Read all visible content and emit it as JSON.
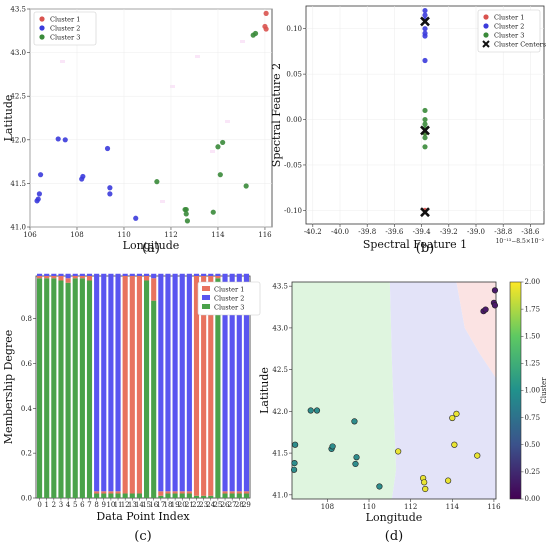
{
  "colors": {
    "cluster1": "#d9534f",
    "cluster2": "#3b3bdb",
    "cluster3": "#3a8a3a",
    "bar1": "#e8735f",
    "bar2": "#5a55f0",
    "bar3": "#4aa24a",
    "region1": "#fbe3e3",
    "region2": "#e3e3f8",
    "region3": "#dff5df"
  },
  "chart_data": [
    {
      "id": "a",
      "type": "scatter",
      "caption": "(a)",
      "xlabel": "Longitude",
      "ylabel": "Latitude",
      "xlim": [
        106,
        116.3
      ],
      "ylim": [
        41,
        43.5
      ],
      "xticks": [
        "106",
        "108",
        "110",
        "112",
        "114",
        "116"
      ],
      "yticks": [
        "41.0",
        "41.5",
        "42.0",
        "42.5",
        "43.0",
        "43.5"
      ],
      "legend": [
        "Cluster 1",
        "Cluster 2",
        "Cluster 3"
      ],
      "legend_position": "top-left",
      "series": [
        {
          "name": "Cluster 1",
          "points": [
            [
              116.05,
              43.45
            ],
            [
              116.0,
              43.3
            ],
            [
              116.05,
              43.27
            ]
          ]
        },
        {
          "name": "Cluster 2",
          "points": [
            [
              106.3,
              41.3
            ],
            [
              106.35,
              41.32
            ],
            [
              106.4,
              41.38
            ],
            [
              106.45,
              41.6
            ],
            [
              107.2,
              42.01
            ],
            [
              107.5,
              42.0
            ],
            [
              108.2,
              41.55
            ],
            [
              108.25,
              41.58
            ],
            [
              109.3,
              41.9
            ],
            [
              109.4,
              41.45
            ],
            [
              109.4,
              41.38
            ],
            [
              110.5,
              41.1
            ]
          ]
        },
        {
          "name": "Cluster 3",
          "points": [
            [
              111.4,
              41.52
            ],
            [
              112.6,
              41.2
            ],
            [
              112.65,
              41.15
            ],
            [
              112.7,
              41.07
            ],
            [
              112.65,
              41.2
            ],
            [
              113.8,
              41.17
            ],
            [
              114.0,
              41.92
            ],
            [
              114.2,
              41.97
            ],
            [
              114.1,
              41.6
            ],
            [
              115.2,
              41.47
            ],
            [
              115.5,
              43.2
            ],
            [
              115.6,
              43.22
            ]
          ]
        }
      ]
    },
    {
      "id": "b",
      "type": "scatter",
      "caption": "(b)",
      "xlabel": "Spectral Feature 1",
      "ylabel": "Spectral Feature 2",
      "x_offset_label": "10⁻¹³−8.5×10⁻²",
      "xlim": [
        -40.25,
        -38.5
      ],
      "ylim": [
        -0.115,
        0.125
      ],
      "xticks": [
        "-40.2",
        "-40.0",
        "-39.8",
        "-39.6",
        "-39.4",
        "-39.2",
        "-39.0",
        "-38.8",
        "-38.6"
      ],
      "xtick_values": [
        -40.2,
        -40.0,
        -39.8,
        -39.6,
        -39.4,
        -39.2,
        -39.0,
        -38.8,
        -38.6
      ],
      "yticks": [
        "0.10",
        "0.05",
        "0.00",
        "-0.05",
        "-0.10"
      ],
      "ytick_values": [
        0.1,
        0.05,
        0.0,
        -0.05,
        -0.1
      ],
      "legend": [
        "Cluster 1",
        "Cluster 2",
        "Cluster 3",
        "Cluster Centers"
      ],
      "legend_position": "top-right",
      "series": [
        {
          "name": "Cluster 1",
          "points": [
            [
              -39.375,
              -0.1
            ],
            [
              -39.375,
              -0.015
            ]
          ]
        },
        {
          "name": "Cluster 2",
          "points": [
            [
              -39.375,
              0.12
            ],
            [
              -39.375,
              0.115
            ],
            [
              -39.375,
              0.11
            ],
            [
              -39.375,
              0.1
            ],
            [
              -39.375,
              0.095
            ],
            [
              -39.375,
              0.092
            ],
            [
              -39.375,
              0.065
            ]
          ]
        },
        {
          "name": "Cluster 3",
          "points": [
            [
              -39.375,
              0.01
            ],
            [
              -39.375,
              0.0
            ],
            [
              -39.375,
              -0.005
            ],
            [
              -39.375,
              -0.01
            ],
            [
              -39.375,
              -0.015
            ],
            [
              -39.375,
              -0.02
            ],
            [
              -39.375,
              -0.03
            ]
          ]
        },
        {
          "name": "Cluster Centers",
          "points": [
            [
              -39.375,
              0.108
            ],
            [
              -39.375,
              -0.012
            ],
            [
              -39.375,
              -0.102
            ]
          ]
        }
      ]
    },
    {
      "id": "c",
      "type": "bar",
      "stacked": true,
      "caption": "(c)",
      "xlabel": "Data Point Index",
      "ylabel": "Membership Degree",
      "ylim": [
        0,
        1.0
      ],
      "yticks": [
        "0.0",
        "0.2",
        "0.4",
        "0.6",
        "0.8"
      ],
      "ytick_values": [
        0,
        0.2,
        0.4,
        0.6,
        0.8
      ],
      "categories": [
        "0",
        "1",
        "2",
        "3",
        "4",
        "5",
        "6",
        "7",
        "8",
        "9",
        "10",
        "11",
        "12",
        "13",
        "14",
        "15",
        "16",
        "17",
        "18",
        "19",
        "20",
        "21",
        "22",
        "23",
        "24",
        "25",
        "26",
        "27",
        "28",
        "29"
      ],
      "legend": [
        "Cluster 1",
        "Cluster 2",
        "Cluster 3"
      ],
      "legend_position": "top-right",
      "series": [
        {
          "name": "Cluster 1",
          "values": [
            0.01,
            0.01,
            0.01,
            0.02,
            0.02,
            0.01,
            0.01,
            0.02,
            0.01,
            0.01,
            0.01,
            0.01,
            0.97,
            0.97,
            0.97,
            0.02,
            0.1,
            0.02,
            0.01,
            0.01,
            0.01,
            0.01,
            0.98,
            0.98,
            0.98,
            0.01,
            0.01,
            0.01,
            0.01,
            0.01
          ]
        },
        {
          "name": "Cluster 2",
          "values": [
            0.01,
            0.01,
            0.01,
            0.01,
            0.02,
            0.01,
            0.01,
            0.01,
            0.97,
            0.97,
            0.97,
            0.97,
            0.01,
            0.01,
            0.01,
            0.01,
            0.02,
            0.97,
            0.97,
            0.97,
            0.97,
            0.97,
            0.01,
            0.01,
            0.01,
            0.01,
            0.97,
            0.97,
            0.97,
            0.97
          ]
        },
        {
          "name": "Cluster 3",
          "values": [
            0.98,
            0.98,
            0.98,
            0.97,
            0.96,
            0.98,
            0.98,
            0.97,
            0.02,
            0.02,
            0.02,
            0.02,
            0.02,
            0.02,
            0.02,
            0.97,
            0.88,
            0.01,
            0.02,
            0.02,
            0.02,
            0.02,
            0.01,
            0.01,
            0.01,
            0.98,
            0.02,
            0.02,
            0.02,
            0.02
          ]
        }
      ]
    },
    {
      "id": "d",
      "type": "scatter",
      "caption": "(d)",
      "xlabel": "Longitude",
      "ylabel": "Latitude",
      "colorbar_label": "Cluster",
      "colorbar_ticks": [
        "0.00",
        "0.25",
        "0.50",
        "0.75",
        "1.00",
        "1.25",
        "1.50",
        "1.75",
        "2.00"
      ],
      "colorbar_range": [
        0,
        2
      ],
      "xlim": [
        106.3,
        116.1
      ],
      "ylim": [
        40.95,
        43.55
      ],
      "xticks": [
        "108",
        "110",
        "112",
        "114",
        "116"
      ],
      "xtick_values": [
        108,
        110,
        112,
        114,
        116
      ],
      "yticks": [
        "41.0",
        "41.5",
        "42.0",
        "42.5",
        "43.0",
        "43.5"
      ],
      "ytick_values": [
        41,
        41.5,
        42,
        42.5,
        43,
        43.5
      ],
      "points": [
        [
          106.4,
          41.3,
          1
        ],
        [
          106.42,
          41.38,
          1
        ],
        [
          106.45,
          41.6,
          1
        ],
        [
          107.2,
          42.01,
          1
        ],
        [
          107.5,
          42.01,
          1
        ],
        [
          108.2,
          41.55,
          1
        ],
        [
          108.25,
          41.58,
          1
        ],
        [
          109.3,
          41.88,
          1
        ],
        [
          109.4,
          41.45,
          1
        ],
        [
          109.35,
          41.37,
          1
        ],
        [
          110.5,
          41.1,
          1
        ],
        [
          111.4,
          41.52,
          2
        ],
        [
          112.6,
          41.2,
          2
        ],
        [
          112.65,
          41.15,
          2
        ],
        [
          112.7,
          41.07,
          2
        ],
        [
          113.8,
          41.17,
          2
        ],
        [
          114.0,
          41.92,
          2
        ],
        [
          114.2,
          41.97,
          2
        ],
        [
          114.1,
          41.6,
          2
        ],
        [
          115.2,
          41.47,
          2
        ],
        [
          115.5,
          43.2,
          0
        ],
        [
          115.6,
          43.22,
          0
        ],
        [
          116.0,
          43.3,
          0
        ],
        [
          116.05,
          43.27,
          0
        ],
        [
          116.05,
          43.45,
          0
        ]
      ]
    }
  ],
  "captions": {
    "a": "(a)",
    "b": "(b)",
    "c": "(c)",
    "d": "(d)"
  }
}
